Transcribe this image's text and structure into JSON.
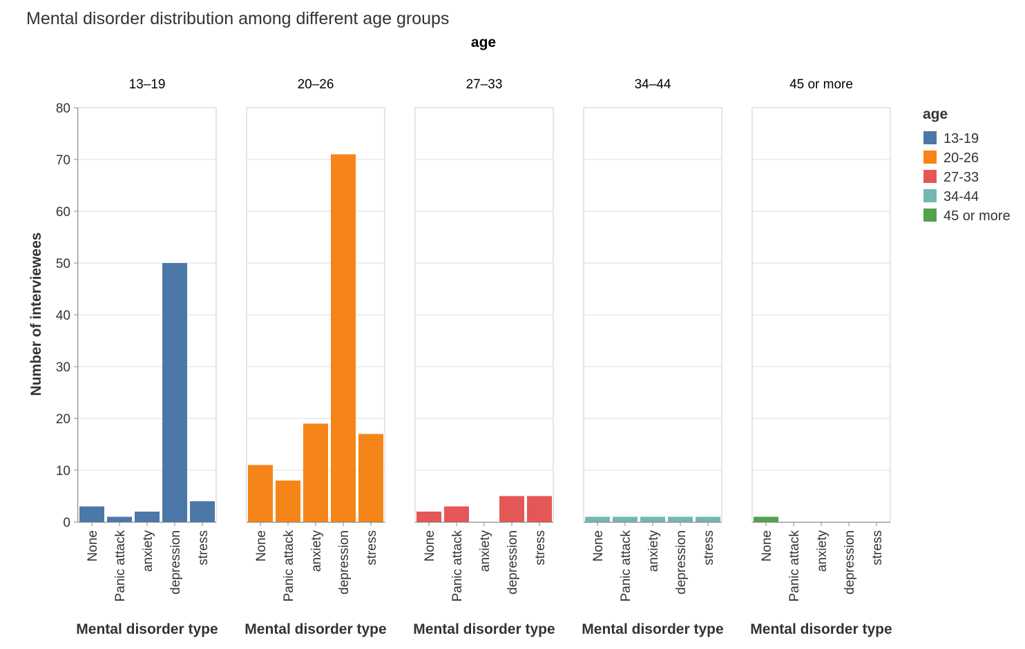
{
  "chart_data": {
    "type": "bar",
    "title": "Mental disorder distribution among different age groups",
    "column_header": "age",
    "xlabel": "Mental disorder type",
    "ylabel": "Number of interviewees",
    "ylim": [
      0,
      80
    ],
    "yticks": [
      0,
      10,
      20,
      30,
      40,
      50,
      60,
      70,
      80
    ],
    "grid": true,
    "categories": [
      "None",
      "Panic attack",
      "anxiety",
      "depression",
      "stress"
    ],
    "facets": [
      {
        "label": "13–19",
        "color": "#4c78a8",
        "values": [
          3,
          1,
          2,
          50,
          4
        ]
      },
      {
        "label": "20–26",
        "color": "#f58518",
        "values": [
          11,
          8,
          19,
          71,
          17
        ]
      },
      {
        "label": "27–33",
        "color": "#e45756",
        "values": [
          2,
          3,
          0,
          5,
          5
        ]
      },
      {
        "label": "34–44",
        "color": "#72b7b2",
        "values": [
          1,
          1,
          1,
          1,
          1
        ]
      },
      {
        "label": "45 or more",
        "color": "#54a24b",
        "values": [
          1,
          0,
          0,
          0,
          0
        ]
      }
    ],
    "legend": {
      "title": "age",
      "position": "right",
      "entries": [
        {
          "label": "13-19",
          "color": "#4c78a8"
        },
        {
          "label": "20-26",
          "color": "#f58518"
        },
        {
          "label": "27-33",
          "color": "#e45756"
        },
        {
          "label": "34-44",
          "color": "#72b7b2"
        },
        {
          "label": "45 or more",
          "color": "#54a24b"
        }
      ]
    }
  }
}
